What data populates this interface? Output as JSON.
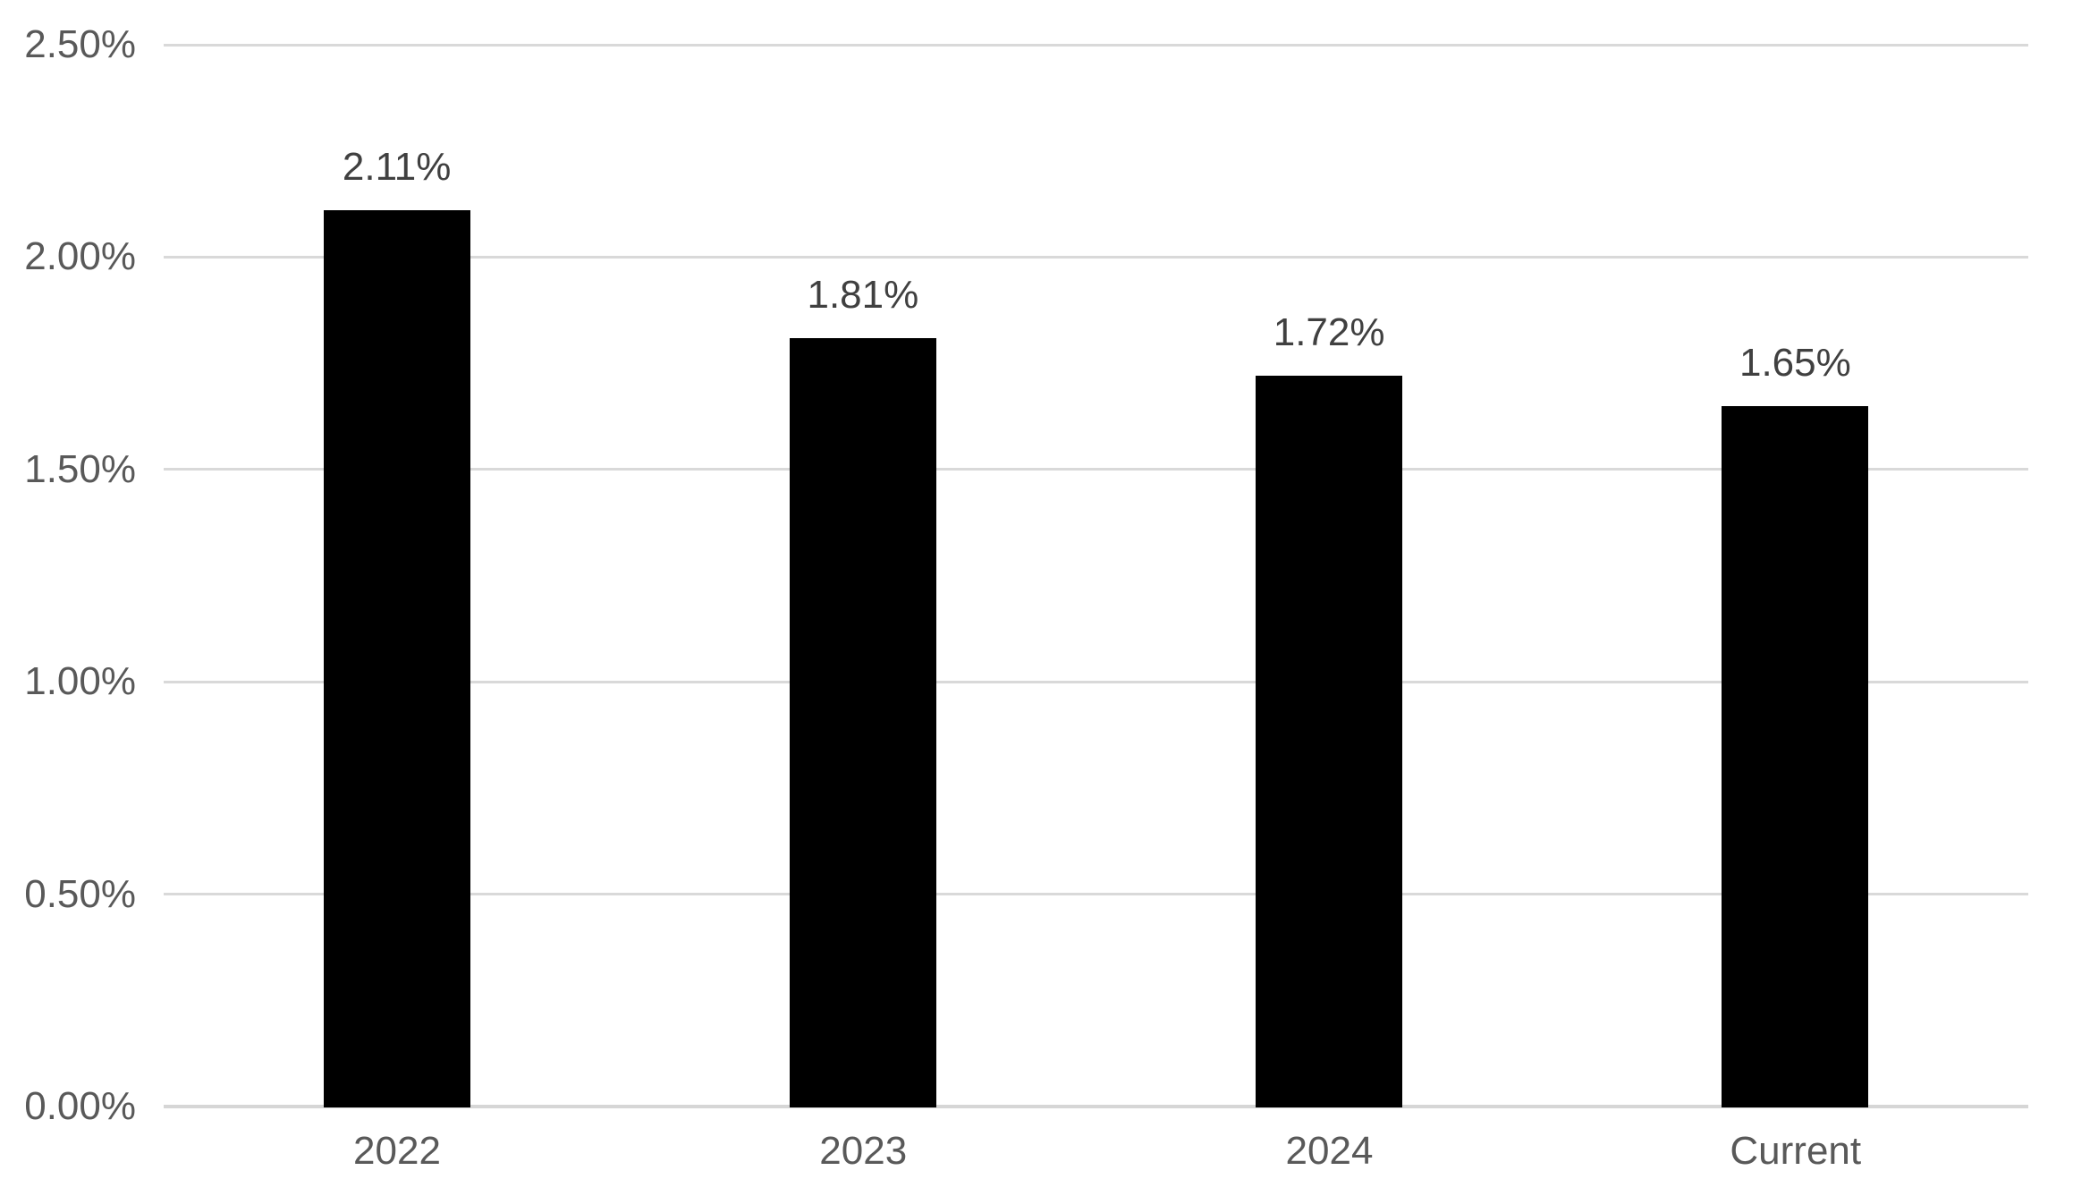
{
  "chart_data": {
    "type": "bar",
    "title": "",
    "xlabel": "",
    "ylabel": "",
    "categories": [
      "2022",
      "2023",
      "2024",
      "Current"
    ],
    "values": [
      2.11,
      1.81,
      1.72,
      1.65
    ],
    "data_labels": [
      "2.11%",
      "1.81%",
      "1.72%",
      "1.65%"
    ],
    "ylim": [
      0,
      2.5
    ],
    "y_ticks": [
      {
        "value": 2.5,
        "label": "2.50%"
      },
      {
        "value": 2.0,
        "label": "2.00%"
      },
      {
        "value": 1.5,
        "label": "1.50%"
      },
      {
        "value": 1.0,
        "label": "1.00%"
      },
      {
        "value": 0.5,
        "label": "0.50%"
      },
      {
        "value": 0.0,
        "label": "0.00%"
      }
    ],
    "grid": true,
    "legend": false,
    "colors": {
      "bar": "#000000",
      "gridline": "#d9d9d9",
      "axis_line": "#d6d6d6",
      "axis_label": "#595959",
      "data_label": "#404040",
      "background": "#ffffff"
    }
  }
}
